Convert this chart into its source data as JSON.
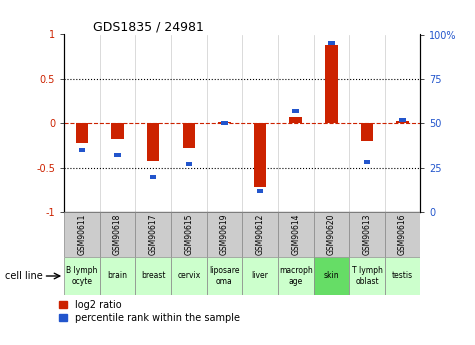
{
  "title": "GDS1835 / 24981",
  "samples": [
    "GSM90611",
    "GSM90618",
    "GSM90617",
    "GSM90615",
    "GSM90619",
    "GSM90612",
    "GSM90614",
    "GSM90620",
    "GSM90613",
    "GSM90616"
  ],
  "cell_lines": [
    "B lymph\nocyte",
    "brain",
    "breast",
    "cervix",
    "liposare\noma",
    "liver",
    "macroph\nage",
    "skin",
    "T lymph\noblast",
    "testis"
  ],
  "cell_line_colors": [
    "#ccffcc",
    "#ccffcc",
    "#ccffcc",
    "#ccffcc",
    "#ccffcc",
    "#ccffcc",
    "#ccffcc",
    "#66dd66",
    "#ccffcc",
    "#ccffcc"
  ],
  "gsm_row_color": "#cccccc",
  "log2_ratio": [
    -0.22,
    -0.18,
    -0.42,
    -0.28,
    0.02,
    -0.72,
    0.07,
    0.88,
    -0.2,
    0.03
  ],
  "percentile_rank": [
    35,
    32,
    20,
    27,
    50,
    12,
    57,
    95,
    28,
    52
  ],
  "bar_color_red": "#cc2200",
  "bar_color_blue": "#2255cc",
  "ylim_left": [
    -1,
    1
  ],
  "ylim_right": [
    0,
    100
  ],
  "yticks_left": [
    -1,
    -0.5,
    0,
    0.5,
    1
  ],
  "ytick_labels_left": [
    "-1",
    "-0.5",
    "0",
    "0.5",
    "1"
  ],
  "yticks_right": [
    0,
    25,
    50,
    75,
    100
  ],
  "ytick_labels_right": [
    "0",
    "25",
    "50",
    "75",
    "100%"
  ]
}
